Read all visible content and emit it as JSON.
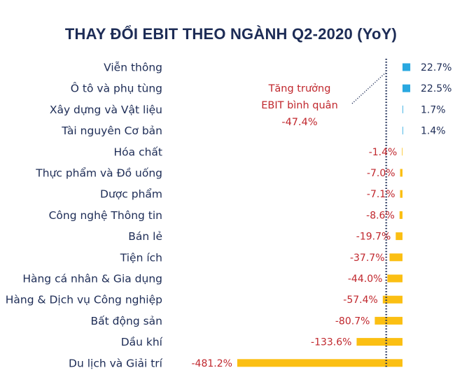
{
  "chart_data": {
    "type": "bar",
    "orientation": "horizontal",
    "title": "THAY ĐỔI EBIT THEO NGÀNH Q2-2020 (YoY)",
    "unit": "%",
    "categories": [
      "Viễn thông",
      "Ô tô và phụ tùng",
      "Xây dựng và Vật liệu",
      "Tài nguyên Cơ bản",
      "Hóa chất",
      "Thực phẩm và Đồ uống",
      "Dược phẩm",
      "Công nghệ Thông tin",
      "Bán lẻ",
      "Tiện ích",
      "Hàng cá nhân & Gia dụng",
      "Hàng & Dịch vụ Công nghiệp",
      "Bất động sản",
      "Dầu khí",
      "Du lịch và Giải trí"
    ],
    "values": [
      22.7,
      22.5,
      1.7,
      1.4,
      -1.4,
      -7.0,
      -7.1,
      -8.6,
      -19.7,
      -37.7,
      -44.0,
      -57.4,
      -80.7,
      -133.6,
      -481.2
    ],
    "value_labels": [
      "22.7%",
      "22.5%",
      "1.7%",
      "1.4%",
      "-1.4%",
      "-7.0%",
      "-7.1%",
      "-8.6%",
      "-19.7%",
      "-37.7%",
      "-44.0%",
      "-57.4%",
      "-80.7%",
      "-133.6%",
      "-481.2%"
    ],
    "colors": {
      "positive": "#29a8e0",
      "negative": "#fbbf13",
      "category_text": "#1d2c56",
      "positive_label": "#1d2c56",
      "negative_label": "#c0272d",
      "reference_line": "#1d2c56"
    },
    "reference_line": {
      "value": -47.4,
      "style": "dotted",
      "label_lines": [
        "Tăng trưởng",
        "EBIT bình quân",
        "-47.4%"
      ]
    },
    "grid": false,
    "legend": "none"
  }
}
